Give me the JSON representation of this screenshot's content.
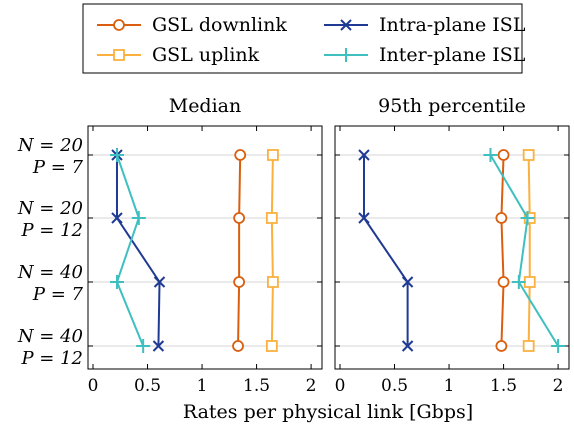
{
  "chart_data": {
    "type": "line",
    "xlabel": "Rates per physical link [Gbps]",
    "xlim": [
      0,
      2.1
    ],
    "xticks": [
      "0",
      "0.5",
      "1",
      "1.5",
      "2"
    ],
    "categories": [
      {
        "n": "N = 20",
        "p": "P = 7"
      },
      {
        "n": "N = 20",
        "p": "P = 12"
      },
      {
        "n": "N = 40",
        "p": "P = 7"
      },
      {
        "n": "N = 40",
        "p": "P = 12"
      }
    ],
    "legend": {
      "placement": "top-center",
      "entries": [
        {
          "name": "GSL downlink",
          "color": "#d95f0e",
          "marker": "circle"
        },
        {
          "name": "GSL uplink",
          "color": "#fbb040",
          "marker": "square"
        },
        {
          "name": "Intra-plane ISL",
          "color": "#1f3a93",
          "marker": "cross"
        },
        {
          "name": "Inter-plane ISL",
          "color": "#3fbfbf",
          "marker": "plus"
        }
      ]
    },
    "panels": [
      {
        "title": "Median",
        "series": [
          {
            "name": "GSL downlink",
            "color": "#d95f0e",
            "marker": "circle",
            "values": [
              1.35,
              1.34,
              1.34,
              1.33
            ]
          },
          {
            "name": "GSL uplink",
            "color": "#fbb040",
            "marker": "square",
            "values": [
              1.65,
              1.64,
              1.65,
              1.64
            ]
          },
          {
            "name": "Intra-plane ISL",
            "color": "#1f3a93",
            "marker": "cross",
            "values": [
              0.22,
              0.22,
              0.61,
              0.6
            ]
          },
          {
            "name": "Inter-plane ISL",
            "color": "#3fbfbf",
            "marker": "plus",
            "values": [
              0.22,
              0.42,
              0.22,
              0.46
            ]
          }
        ]
      },
      {
        "title": "95th percentile",
        "series": [
          {
            "name": "GSL downlink",
            "color": "#d95f0e",
            "marker": "circle",
            "values": [
              1.5,
              1.48,
              1.5,
              1.48
            ]
          },
          {
            "name": "GSL uplink",
            "color": "#fbb040",
            "marker": "square",
            "values": [
              1.73,
              1.74,
              1.74,
              1.73
            ]
          },
          {
            "name": "Intra-plane ISL",
            "color": "#1f3a93",
            "marker": "cross",
            "values": [
              0.22,
              0.22,
              0.62,
              0.62
            ]
          },
          {
            "name": "Inter-plane ISL",
            "color": "#3fbfbf",
            "marker": "plus",
            "values": [
              1.38,
              1.72,
              1.64,
              2.0
            ]
          }
        ]
      }
    ],
    "grid": "horizontal"
  }
}
